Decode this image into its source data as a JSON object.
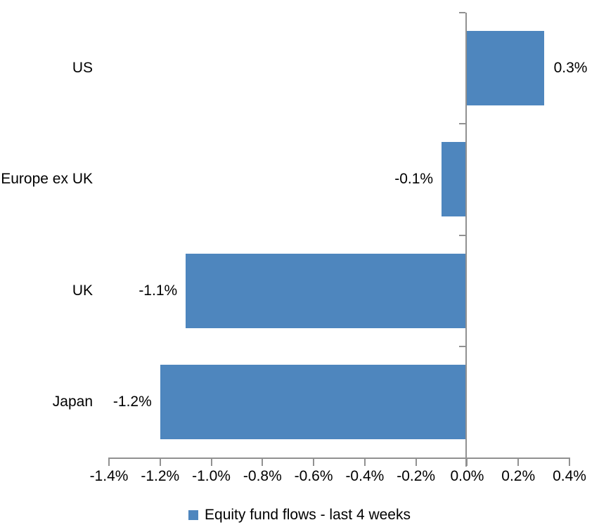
{
  "chart_data": {
    "type": "bar",
    "orientation": "horizontal",
    "title": "",
    "xlabel": "",
    "ylabel": "",
    "categories": [
      "US",
      "Europe ex UK",
      "UK",
      "Japan"
    ],
    "series": [
      {
        "name": "Equity fund flows - last 4 weeks",
        "values": [
          0.3,
          -0.1,
          -1.1,
          -1.2
        ],
        "labels": [
          "0.3%",
          "-0.1%",
          "-1.1%",
          "-1.2%"
        ]
      }
    ],
    "xlim": [
      -1.4,
      0.4
    ],
    "x_ticks": [
      {
        "value": -1.4,
        "label": "-1.4%"
      },
      {
        "value": -1.2,
        "label": "-1.2%"
      },
      {
        "value": -1.0,
        "label": "-1.0%"
      },
      {
        "value": -0.8,
        "label": "-0.8%"
      },
      {
        "value": -0.6,
        "label": "-0.6%"
      },
      {
        "value": -0.4,
        "label": "-0.4%"
      },
      {
        "value": -0.2,
        "label": "-0.2%"
      },
      {
        "value": 0.0,
        "label": "0.0%"
      },
      {
        "value": 0.2,
        "label": "0.2%"
      },
      {
        "value": 0.4,
        "label": "0.4%"
      }
    ],
    "grid": false,
    "legend": {
      "position": "bottom"
    },
    "colors": {
      "bar": "#4E86BE",
      "axis": "#919191",
      "text": "#000000",
      "background": "#FFFFFF"
    }
  }
}
